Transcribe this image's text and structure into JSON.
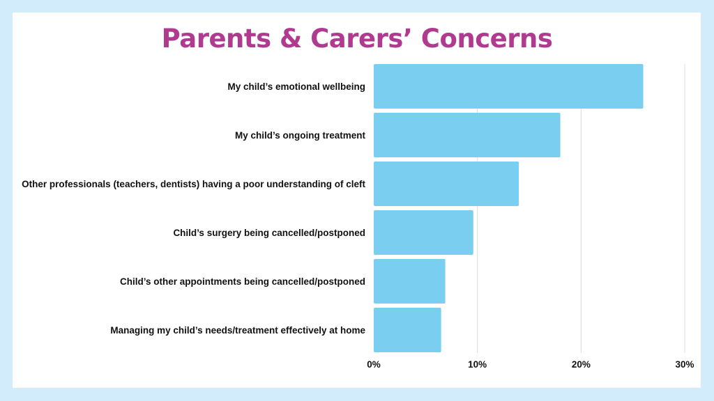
{
  "chart_data": {
    "type": "bar",
    "orientation": "horizontal",
    "title": "Parents & Carers’ Concerns",
    "categories": [
      "My child’s emotional wellbeing",
      "My child’s ongoing treatment",
      "Other professionals (teachers, dentists) having a poor understanding of cleft",
      "Child’s surgery being cancelled/postponed",
      "Child’s other appointments being cancelled/postponed",
      "Managing my child’s needs/treatment effectively at home"
    ],
    "values": [
      26,
      18,
      14,
      9.6,
      6.9,
      6.5
    ],
    "value_unit": "%",
    "xlim": [
      0,
      30
    ],
    "xticks": [
      0,
      10,
      20,
      30
    ],
    "xtick_labels": [
      "0%",
      "10%",
      "20%",
      "30%"
    ],
    "grid": true,
    "bar_color": "#7acef0",
    "title_color": "#b03a8f",
    "background_color": "#d3ecfb"
  }
}
